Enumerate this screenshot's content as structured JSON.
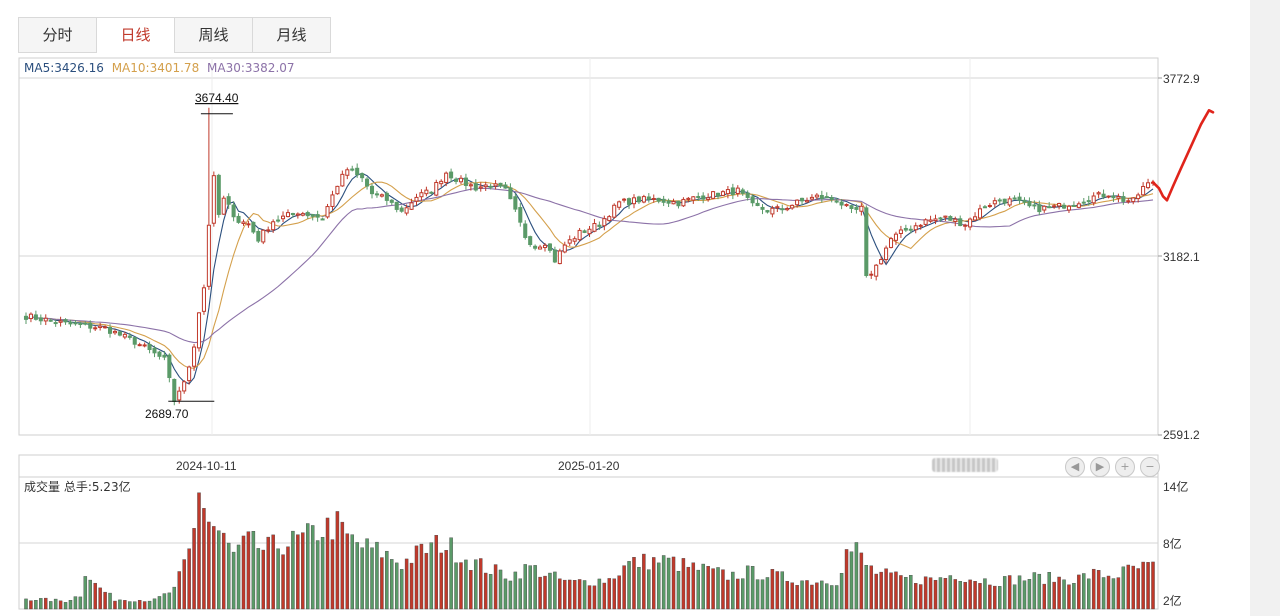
{
  "tabs": [
    {
      "label": "分时",
      "active": false
    },
    {
      "label": "日线",
      "active": true
    },
    {
      "label": "周线",
      "active": false
    },
    {
      "label": "月线",
      "active": false
    }
  ],
  "legend": {
    "ma5": "MA5:3426.16",
    "ma10": "MA10:3401.78",
    "ma30": "MA30:3382.07",
    "colors": {
      "ma5": "#2b4f7e",
      "ma10": "#d4a04c",
      "ma30": "#8c72a8"
    }
  },
  "price_axis": {
    "labels": [
      "3772.9",
      "3182.1",
      "2591.2"
    ],
    "values": [
      3772.9,
      3182.1,
      2591.2
    ]
  },
  "date_axis": {
    "labels": [
      "2024-10-11",
      "2025-01-20"
    ]
  },
  "annotations": {
    "high": "3674.40",
    "low": "2689.70"
  },
  "volume": {
    "title": "成交量 总手:5.23亿",
    "axis_labels": [
      "14亿",
      "8亿",
      "2亿"
    ],
    "axis_values": [
      14,
      8,
      2
    ]
  },
  "nav_buttons": {
    "prev_icon": "◀",
    "next_icon": "▶",
    "zoom_in_icon": "+",
    "zoom_out_icon": "−"
  },
  "colors": {
    "up": "#c0392b",
    "down": "#5a9a68",
    "marker": "#e0241b",
    "grid": "#d6d6d6"
  },
  "chart_data": {
    "type": "candlestick",
    "title": "",
    "y_range": [
      2591.2,
      3772.9
    ],
    "price_anchors": [
      [
        0,
        2985
      ],
      [
        8,
        2960
      ],
      [
        16,
        2945
      ],
      [
        22,
        2900
      ],
      [
        26,
        2860
      ],
      [
        28,
        2840
      ],
      [
        30,
        2705
      ],
      [
        31,
        2740
      ],
      [
        32,
        2760
      ],
      [
        33,
        2820
      ],
      [
        34,
        2890
      ],
      [
        35,
        3000
      ],
      [
        36,
        3080
      ],
      [
        37,
        3290
      ],
      [
        38,
        3440
      ],
      [
        39,
        3320
      ],
      [
        40,
        3370
      ],
      [
        43,
        3300
      ],
      [
        45,
        3290
      ],
      [
        47,
        3240
      ],
      [
        50,
        3300
      ],
      [
        55,
        3330
      ],
      [
        60,
        3310
      ],
      [
        63,
        3420
      ],
      [
        65,
        3470
      ],
      [
        68,
        3440
      ],
      [
        70,
        3390
      ],
      [
        73,
        3370
      ],
      [
        76,
        3330
      ],
      [
        79,
        3380
      ],
      [
        82,
        3400
      ],
      [
        85,
        3460
      ],
      [
        88,
        3430
      ],
      [
        91,
        3410
      ],
      [
        94,
        3420
      ],
      [
        97,
        3400
      ],
      [
        99,
        3330
      ],
      [
        101,
        3250
      ],
      [
        103,
        3215
      ],
      [
        105,
        3230
      ],
      [
        107,
        3170
      ],
      [
        109,
        3220
      ],
      [
        112,
        3260
      ],
      [
        116,
        3290
      ],
      [
        120,
        3360
      ],
      [
        124,
        3370
      ],
      [
        128,
        3370
      ],
      [
        132,
        3360
      ],
      [
        136,
        3380
      ],
      [
        140,
        3390
      ],
      [
        144,
        3400
      ],
      [
        147,
        3350
      ],
      [
        150,
        3335
      ],
      [
        153,
        3340
      ],
      [
        156,
        3360
      ],
      [
        160,
        3380
      ],
      [
        164,
        3370
      ],
      [
        167,
        3330
      ],
      [
        169,
        3340
      ],
      [
        170,
        3110
      ],
      [
        172,
        3150
      ],
      [
        175,
        3240
      ],
      [
        178,
        3270
      ],
      [
        182,
        3300
      ],
      [
        186,
        3310
      ],
      [
        190,
        3290
      ],
      [
        194,
        3350
      ],
      [
        197,
        3370
      ],
      [
        200,
        3365
      ],
      [
        204,
        3340
      ],
      [
        208,
        3345
      ],
      [
        212,
        3360
      ],
      [
        216,
        3380
      ],
      [
        219,
        3390
      ],
      [
        222,
        3370
      ],
      [
        224,
        3365
      ],
      [
        226,
        3410
      ],
      [
        228,
        3430
      ]
    ],
    "ma5_last": 3426.16,
    "ma10_last": 3401.78,
    "ma30_last": 3382.07,
    "annotated_high": 3674.4,
    "annotated_low": 2689.7,
    "volume_unit": "亿",
    "volume_range": [
      0,
      14
    ],
    "volume_anchors": [
      [
        0,
        1.2
      ],
      [
        8,
        0.9
      ],
      [
        11,
        1.6
      ],
      [
        12,
        4.5
      ],
      [
        14,
        2.8
      ],
      [
        18,
        1.1
      ],
      [
        26,
        1.0
      ],
      [
        28,
        1.6
      ],
      [
        30,
        2.2
      ],
      [
        33,
        6.5
      ],
      [
        34,
        9.0
      ],
      [
        35,
        14.2
      ],
      [
        36,
        12.0
      ],
      [
        37,
        10.0
      ],
      [
        38,
        9.5
      ],
      [
        40,
        8.0
      ],
      [
        42,
        6.2
      ],
      [
        45,
        7.8
      ],
      [
        48,
        6.8
      ],
      [
        52,
        7.5
      ],
      [
        56,
        8.0
      ],
      [
        60,
        9.2
      ],
      [
        63,
        9.6
      ],
      [
        65,
        8.2
      ],
      [
        68,
        7.2
      ],
      [
        72,
        6.5
      ],
      [
        76,
        5.2
      ],
      [
        80,
        6.6
      ],
      [
        84,
        7.6
      ],
      [
        86,
        7.0
      ],
      [
        90,
        5.5
      ],
      [
        94,
        4.5
      ],
      [
        98,
        3.8
      ],
      [
        102,
        4.8
      ],
      [
        106,
        3.8
      ],
      [
        110,
        3.0
      ],
      [
        114,
        3.2
      ],
      [
        118,
        3.4
      ],
      [
        122,
        5.2
      ],
      [
        126,
        5.5
      ],
      [
        130,
        5.5
      ],
      [
        134,
        4.8
      ],
      [
        138,
        4.4
      ],
      [
        142,
        3.8
      ],
      [
        146,
        4.2
      ],
      [
        150,
        4.0
      ],
      [
        154,
        3.5
      ],
      [
        158,
        3.2
      ],
      [
        164,
        3.3
      ],
      [
        166,
        6.5
      ],
      [
        168,
        6.8
      ],
      [
        170,
        5.0
      ],
      [
        172,
        4.2
      ],
      [
        176,
        3.6
      ],
      [
        180,
        3.4
      ],
      [
        184,
        3.4
      ],
      [
        188,
        4.0
      ],
      [
        192,
        3.4
      ],
      [
        196,
        3.2
      ],
      [
        200,
        3.4
      ],
      [
        204,
        3.6
      ],
      [
        208,
        3.5
      ],
      [
        212,
        3.4
      ],
      [
        216,
        4.0
      ],
      [
        220,
        3.8
      ],
      [
        224,
        4.6
      ],
      [
        228,
        4.8
      ]
    ],
    "bar_count": 229
  }
}
